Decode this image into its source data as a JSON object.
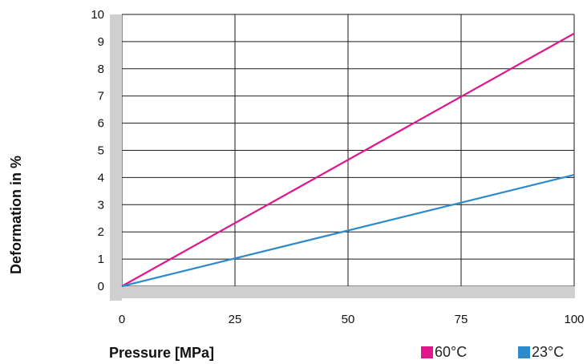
{
  "chart_data": {
    "type": "line",
    "xlabel": "Pressure [MPa]",
    "ylabel": "Deformation in %",
    "xlim": [
      0,
      100
    ],
    "ylim": [
      0,
      10
    ],
    "xticks": [
      0,
      25,
      50,
      75,
      100
    ],
    "yticks": [
      0,
      1,
      2,
      3,
      4,
      5,
      6,
      7,
      8,
      9,
      10
    ],
    "grid": true,
    "legend_position": "bottom-right",
    "series": [
      {
        "name": "60°C",
        "color": "#e0168c",
        "x": [
          0,
          100
        ],
        "y": [
          0,
          9.3
        ]
      },
      {
        "name": "23°C",
        "color": "#2d8bca",
        "x": [
          0,
          100
        ],
        "y": [
          0,
          4.1
        ]
      }
    ]
  }
}
